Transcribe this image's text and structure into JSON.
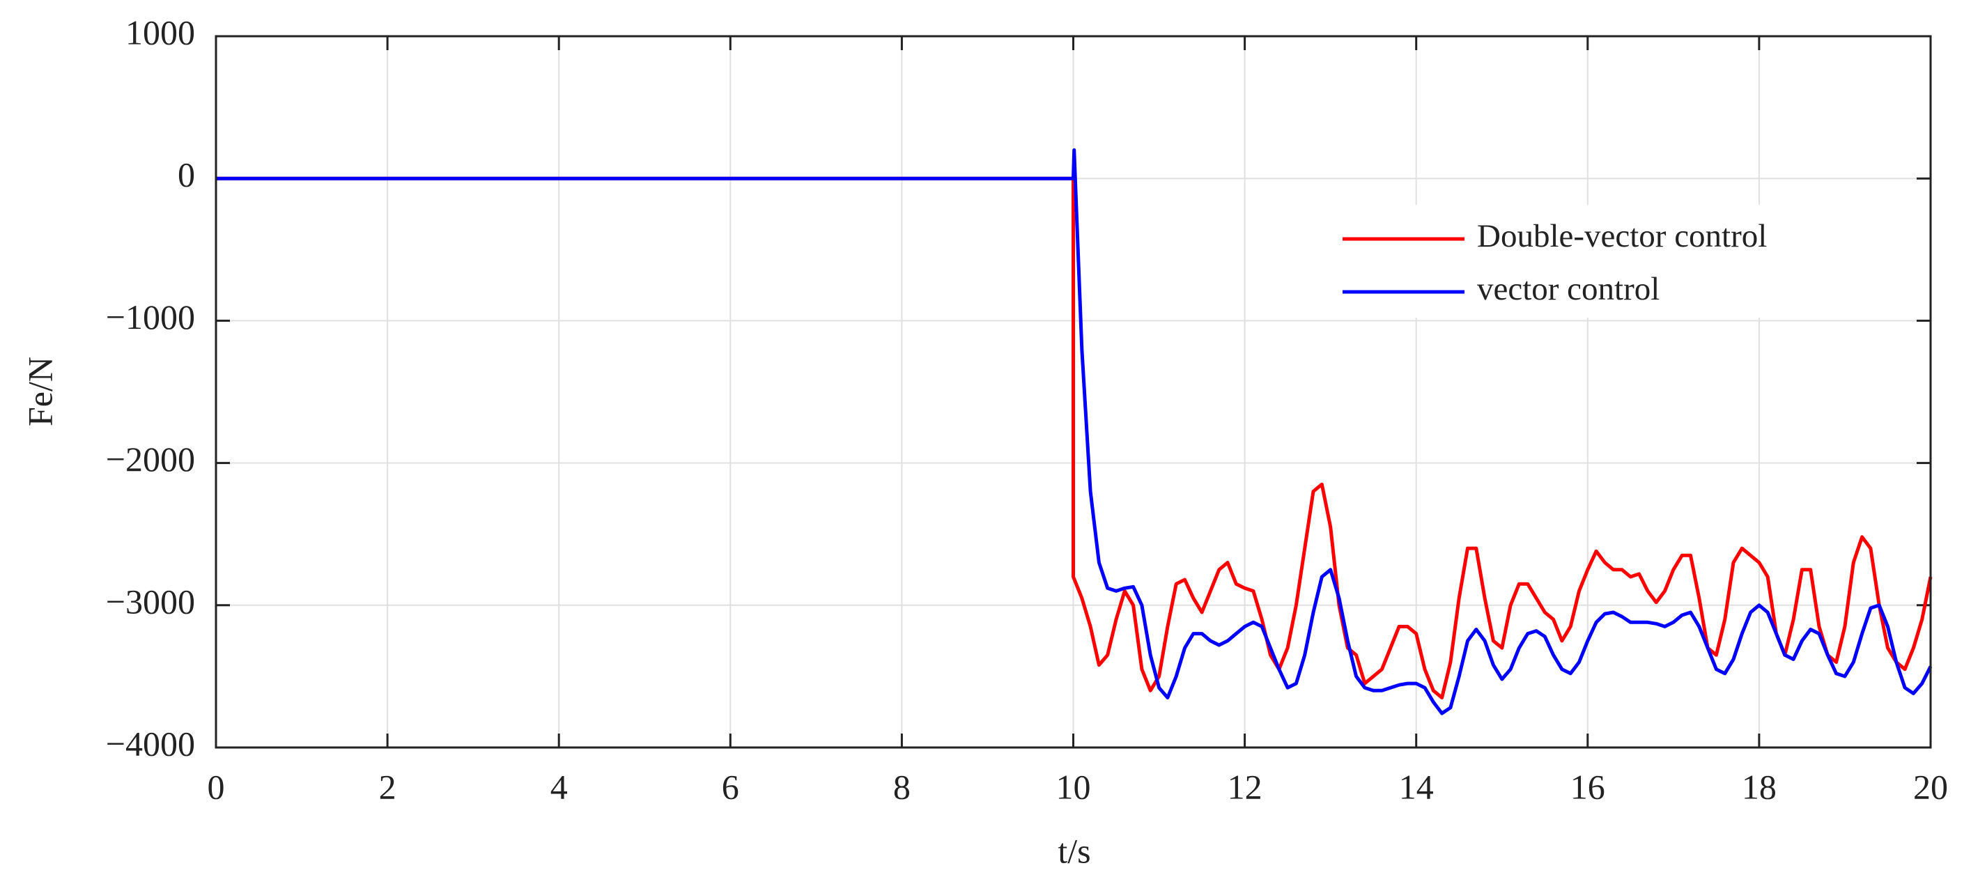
{
  "chart_data": {
    "type": "line",
    "xlabel": "t/s",
    "ylabel": "Fe/N",
    "xlim": [
      0,
      20
    ],
    "xticks": [
      0,
      2,
      4,
      6,
      8,
      10,
      12,
      14,
      16,
      18,
      20
    ],
    "ylim": [
      -4000,
      1000
    ],
    "yticks": [
      {
        "value": -4000,
        "label": "−4000"
      },
      {
        "value": -3000,
        "label": "−3000"
      },
      {
        "value": -2000,
        "label": "−2000"
      },
      {
        "value": -1000,
        "label": "−1000"
      },
      0,
      1000
    ],
    "grid": true,
    "legend": "upper right",
    "series": [
      {
        "name": "Double-vector control",
        "color": "#ff0000",
        "x": [
          0,
          10,
          10,
          10.1,
          10.2,
          10.3,
          10.4,
          10.5,
          10.6,
          10.7,
          10.8,
          10.9,
          11.0,
          11.1,
          11.2,
          11.3,
          11.4,
          11.5,
          11.6,
          11.7,
          11.8,
          11.9,
          12.0,
          12.1,
          12.2,
          12.3,
          12.4,
          12.5,
          12.6,
          12.7,
          12.8,
          12.9,
          13.0,
          13.1,
          13.2,
          13.3,
          13.4,
          13.5,
          13.6,
          13.7,
          13.8,
          13.9,
          14.0,
          14.1,
          14.2,
          14.3,
          14.4,
          14.5,
          14.6,
          14.7,
          14.8,
          14.9,
          15.0,
          15.1,
          15.2,
          15.3,
          15.4,
          15.5,
          15.6,
          15.7,
          15.8,
          15.9,
          16.0,
          16.1,
          16.2,
          16.3,
          16.4,
          16.5,
          16.6,
          16.7,
          16.8,
          16.9,
          17.0,
          17.1,
          17.2,
          17.3,
          17.4,
          17.5,
          17.6,
          17.7,
          17.8,
          17.9,
          18.0,
          18.1,
          18.2,
          18.3,
          18.4,
          18.5,
          18.6,
          18.7,
          18.8,
          18.9,
          19.0,
          19.1,
          19.2,
          19.3,
          19.4,
          19.5,
          19.6,
          19.7,
          19.8,
          19.9,
          20.0
        ],
        "values": [
          0,
          0,
          -2800,
          -2950,
          -3150,
          -3420,
          -3350,
          -3100,
          -2900,
          -3000,
          -3450,
          -3600,
          -3500,
          -3150,
          -2850,
          -2820,
          -2950,
          -3050,
          -2900,
          -2750,
          -2700,
          -2850,
          -2880,
          -2900,
          -3100,
          -3350,
          -3450,
          -3300,
          -3000,
          -2600,
          -2200,
          -2150,
          -2450,
          -3000,
          -3300,
          -3350,
          -3550,
          -3500,
          -3450,
          -3300,
          -3150,
          -3150,
          -3200,
          -3450,
          -3600,
          -3650,
          -3400,
          -2950,
          -2600,
          -2600,
          -2950,
          -3250,
          -3300,
          -3000,
          -2850,
          -2850,
          -2950,
          -3050,
          -3100,
          -3250,
          -3150,
          -2900,
          -2750,
          -2620,
          -2700,
          -2750,
          -2750,
          -2800,
          -2780,
          -2900,
          -2980,
          -2900,
          -2750,
          -2650,
          -2650,
          -2950,
          -3300,
          -3350,
          -3100,
          -2700,
          -2600,
          -2650,
          -2700,
          -2800,
          -3200,
          -3350,
          -3100,
          -2750,
          -2750,
          -3150,
          -3350,
          -3400,
          -3150,
          -2700,
          -2520,
          -2600,
          -3000,
          -3300,
          -3400,
          -3450,
          -3300,
          -3100,
          -2800
        ]
      },
      {
        "name": "vector control",
        "color": "#0000ff",
        "x": [
          0,
          10,
          10.01,
          10.1,
          10.2,
          10.3,
          10.4,
          10.5,
          10.6,
          10.7,
          10.8,
          10.9,
          11.0,
          11.1,
          11.2,
          11.3,
          11.4,
          11.5,
          11.6,
          11.7,
          11.8,
          11.9,
          12.0,
          12.1,
          12.2,
          12.3,
          12.4,
          12.5,
          12.6,
          12.7,
          12.8,
          12.9,
          13.0,
          13.1,
          13.2,
          13.3,
          13.4,
          13.5,
          13.6,
          13.7,
          13.8,
          13.9,
          14.0,
          14.1,
          14.2,
          14.3,
          14.4,
          14.5,
          14.6,
          14.7,
          14.8,
          14.9,
          15.0,
          15.1,
          15.2,
          15.3,
          15.4,
          15.5,
          15.6,
          15.7,
          15.8,
          15.9,
          16.0,
          16.1,
          16.2,
          16.3,
          16.4,
          16.5,
          16.6,
          16.7,
          16.8,
          16.9,
          17.0,
          17.1,
          17.2,
          17.3,
          17.4,
          17.5,
          17.6,
          17.7,
          17.8,
          17.9,
          18.0,
          18.1,
          18.2,
          18.3,
          18.4,
          18.5,
          18.6,
          18.7,
          18.8,
          18.9,
          19.0,
          19.1,
          19.2,
          19.3,
          19.4,
          19.5,
          19.6,
          19.7,
          19.8,
          19.9,
          20.0
        ],
        "values": [
          0,
          0,
          200,
          -1200,
          -2200,
          -2700,
          -2880,
          -2900,
          -2880,
          -2870,
          -3000,
          -3350,
          -3580,
          -3650,
          -3500,
          -3300,
          -3200,
          -3200,
          -3250,
          -3280,
          -3250,
          -3200,
          -3150,
          -3120,
          -3150,
          -3300,
          -3450,
          -3580,
          -3550,
          -3350,
          -3050,
          -2800,
          -2750,
          -2950,
          -3250,
          -3500,
          -3580,
          -3600,
          -3600,
          -3580,
          -3560,
          -3550,
          -3550,
          -3580,
          -3680,
          -3760,
          -3720,
          -3500,
          -3250,
          -3170,
          -3250,
          -3420,
          -3520,
          -3450,
          -3300,
          -3200,
          -3180,
          -3220,
          -3350,
          -3450,
          -3480,
          -3400,
          -3250,
          -3120,
          -3060,
          -3050,
          -3080,
          -3120,
          -3120,
          -3120,
          -3130,
          -3150,
          -3120,
          -3070,
          -3050,
          -3150,
          -3300,
          -3450,
          -3480,
          -3380,
          -3200,
          -3050,
          -3000,
          -3050,
          -3200,
          -3350,
          -3380,
          -3250,
          -3170,
          -3200,
          -3350,
          -3480,
          -3500,
          -3400,
          -3200,
          -3020,
          -3000,
          -3150,
          -3400,
          -3580,
          -3620,
          -3550,
          -3430
        ]
      }
    ]
  }
}
